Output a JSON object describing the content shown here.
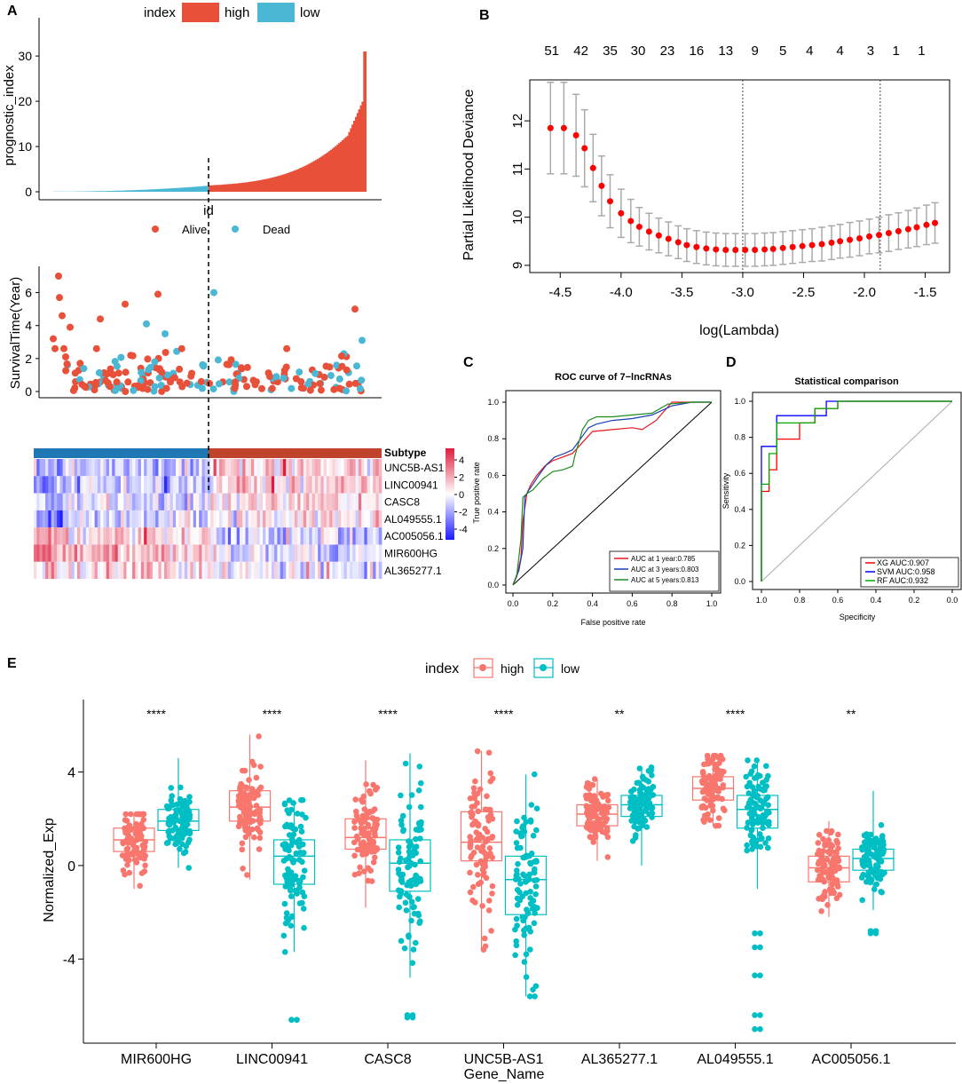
{
  "panel_labels": {
    "a": "A",
    "b": "B",
    "c": "C",
    "d": "D",
    "e": "E"
  },
  "colors": {
    "high": "#e8503a",
    "low": "#4ab8d4",
    "alive": "#e8503a",
    "dead": "#4ab8d4",
    "point": "#ff0000",
    "errbar": "#aaaaaa",
    "box_high": "#f8766d",
    "box_low": "#00bfc4",
    "heat_high": "#dd1c3c",
    "heat_mid": "#ffffff",
    "heat_low": "#1a1aff",
    "subtype_low": "#1f78b4",
    "subtype_high": "#c0432c"
  },
  "chart_data": [
    {
      "id": "A1",
      "type": "bar",
      "title": "",
      "ylabel": "prognostic_index",
      "xlabel": "id",
      "yticks": [
        "0",
        "10",
        "20",
        "30"
      ],
      "ylim": [
        0,
        31
      ],
      "legend": {
        "title": "index",
        "items": [
          "high",
          "low"
        ]
      },
      "n_low": 100,
      "n_high": 95,
      "max_value": 31
    },
    {
      "id": "A2",
      "type": "scatter",
      "ylabel": "SurvivalTime(Year)",
      "yticks": [
        "0",
        "2",
        "4",
        "6"
      ],
      "ylim": [
        0,
        7.3
      ],
      "legend": {
        "items": [
          "Alive",
          "Dead"
        ]
      },
      "note": "points ordered by prognostic index; low group left of cutoff"
    },
    {
      "id": "A3",
      "type": "heatmap",
      "annotation_label": "Subtype",
      "rows": [
        "UNC5B-AS1",
        "LINC00941",
        "CASC8",
        "AL049555.1",
        "AC005056.1",
        "MIR600HG",
        "AL365277.1"
      ],
      "scale_ticks": [
        "4",
        "2",
        "0",
        "-2",
        "-4"
      ]
    },
    {
      "id": "B",
      "type": "line",
      "xlabel": "log(Lambda)",
      "ylabel": "Partial Likelihood Deviance",
      "xticks": [
        "-4.5",
        "-4.0",
        "-3.5",
        "-3.0",
        "-2.5",
        "-2.0",
        "-1.5"
      ],
      "yticks": [
        "9",
        "10",
        "11",
        "12"
      ],
      "xlim": [
        -4.75,
        -1.3
      ],
      "ylim": [
        8.85,
        12.85
      ],
      "top_counts": [
        "51",
        "42",
        "35",
        "30",
        "23",
        "16",
        "13",
        "9",
        "5",
        "4",
        "4",
        "3",
        "1",
        "1"
      ],
      "top_count_x": [
        -4.57,
        -4.33,
        -4.09,
        -3.86,
        -3.62,
        -3.38,
        -3.14,
        -2.9,
        -2.67,
        -2.45,
        -2.2,
        -1.95,
        -1.74,
        -1.53
      ],
      "vlines": [
        -3.0,
        -1.87
      ],
      "x": [
        -4.58,
        -4.47,
        -4.37,
        -4.3,
        -4.23,
        -4.16,
        -4.09,
        -4.0,
        -3.92,
        -3.85,
        -3.77,
        -3.69,
        -3.61,
        -3.53,
        -3.46,
        -3.38,
        -3.3,
        -3.22,
        -3.14,
        -3.06,
        -2.98,
        -2.9,
        -2.82,
        -2.75,
        -2.67,
        -2.59,
        -2.51,
        -2.43,
        -2.35,
        -2.27,
        -2.2,
        -2.12,
        -2.04,
        -1.96,
        -1.88,
        -1.8,
        -1.72,
        -1.64,
        -1.57,
        -1.49,
        -1.42
      ],
      "mean": [
        11.85,
        11.85,
        11.7,
        11.43,
        11.02,
        10.65,
        10.33,
        10.08,
        9.92,
        9.8,
        9.7,
        9.62,
        9.55,
        9.48,
        9.42,
        9.38,
        9.35,
        9.33,
        9.32,
        9.32,
        9.32,
        9.32,
        9.33,
        9.34,
        9.36,
        9.38,
        9.4,
        9.42,
        9.44,
        9.47,
        9.5,
        9.53,
        9.56,
        9.6,
        9.63,
        9.67,
        9.71,
        9.75,
        9.79,
        9.84,
        9.88
      ],
      "err": [
        0.95,
        0.95,
        0.85,
        0.8,
        0.7,
        0.62,
        0.55,
        0.5,
        0.45,
        0.4,
        0.38,
        0.36,
        0.35,
        0.34,
        0.34,
        0.34,
        0.34,
        0.34,
        0.34,
        0.34,
        0.34,
        0.34,
        0.34,
        0.34,
        0.34,
        0.34,
        0.34,
        0.34,
        0.35,
        0.35,
        0.35,
        0.36,
        0.36,
        0.36,
        0.37,
        0.38,
        0.38,
        0.39,
        0.4,
        0.41,
        0.42
      ]
    },
    {
      "id": "C",
      "type": "line",
      "title": "ROC curve of 7−lncRNAs",
      "xlabel": "False positive rate",
      "ylabel": "True positive rate",
      "ticks": [
        "0.0",
        "0.2",
        "0.4",
        "0.6",
        "0.8",
        "1.0"
      ],
      "series": [
        {
          "name": "AUC at 1 year:0.785",
          "color": "#e8191e",
          "x": [
            0,
            0.02,
            0.04,
            0.05,
            0.07,
            0.09,
            0.12,
            0.16,
            0.2,
            0.25,
            0.3,
            0.35,
            0.4,
            0.5,
            0.6,
            0.65,
            0.72,
            0.8,
            0.9,
            1
          ],
          "y": [
            0,
            0.05,
            0.15,
            0.35,
            0.5,
            0.55,
            0.6,
            0.65,
            0.68,
            0.7,
            0.72,
            0.78,
            0.84,
            0.85,
            0.86,
            0.85,
            0.9,
            1,
            1,
            1
          ]
        },
        {
          "name": "AUC at 3 years:0.803",
          "color": "#1a3fb8",
          "x": [
            0,
            0.03,
            0.05,
            0.06,
            0.08,
            0.1,
            0.13,
            0.17,
            0.21,
            0.26,
            0.3,
            0.34,
            0.38,
            0.42,
            0.5,
            0.6,
            0.7,
            0.8,
            0.9,
            1
          ],
          "y": [
            0,
            0.08,
            0.2,
            0.48,
            0.52,
            0.55,
            0.6,
            0.66,
            0.7,
            0.72,
            0.74,
            0.8,
            0.86,
            0.88,
            0.9,
            0.91,
            0.93,
            0.98,
            1,
            1
          ]
        },
        {
          "name": "AUC at 5 years:0.813",
          "color": "#1f8a1f",
          "x": [
            0,
            0.02,
            0.04,
            0.05,
            0.07,
            0.1,
            0.15,
            0.2,
            0.25,
            0.3,
            0.31,
            0.35,
            0.38,
            0.42,
            0.5,
            0.6,
            0.7,
            0.78,
            0.9,
            1
          ],
          "y": [
            0,
            0.06,
            0.25,
            0.48,
            0.5,
            0.52,
            0.58,
            0.62,
            0.63,
            0.65,
            0.7,
            0.85,
            0.9,
            0.92,
            0.92,
            0.93,
            0.94,
            0.99,
            1,
            1
          ]
        }
      ]
    },
    {
      "id": "D",
      "type": "line",
      "title": "Statistical comparison",
      "xlabel": "Specificity",
      "ylabel": "Sensitivity",
      "xticks": [
        "1.0",
        "0.8",
        "0.6",
        "0.4",
        "0.2",
        "0.0"
      ],
      "yticks": [
        "0.0",
        "0.2",
        "0.4",
        "0.6",
        "0.8",
        "1.0"
      ],
      "series": [
        {
          "name": "XG AUC:0.907",
          "color": "#ff0000",
          "spec": [
            1,
            1,
            0.96,
            0.96,
            0.92,
            0.92,
            0.8,
            0.8,
            0.72,
            0.72,
            0.6,
            0.6,
            0
          ],
          "sens": [
            0,
            0.5,
            0.5,
            0.62,
            0.62,
            0.79,
            0.79,
            0.88,
            0.88,
            0.96,
            0.96,
            1,
            1
          ]
        },
        {
          "name": "SVM AUC:0.958",
          "color": "#0000ff",
          "spec": [
            1,
            1,
            0.92,
            0.92,
            0.66,
            0.66,
            0
          ],
          "sens": [
            0,
            0.75,
            0.75,
            0.92,
            0.92,
            1,
            1
          ]
        },
        {
          "name": "RF AUC:0.932",
          "color": "#00aa00",
          "spec": [
            1,
            1,
            0.96,
            0.96,
            0.92,
            0.92,
            0.72,
            0.72,
            0.6,
            0.6,
            0
          ],
          "sens": [
            0,
            0.54,
            0.54,
            0.71,
            0.71,
            0.88,
            0.88,
            0.96,
            0.96,
            1,
            1
          ]
        }
      ]
    },
    {
      "id": "E",
      "type": "box",
      "legend": {
        "title": "index",
        "items": [
          "high",
          "low"
        ]
      },
      "xlabel": "Gene_Name",
      "ylabel": "Normalized_Exp",
      "yticks": [
        "-4",
        "0",
        "4"
      ],
      "ylim": [
        -7.6,
        7.1
      ],
      "categories": [
        "MIR600HG",
        "LINC00941",
        "CASC8",
        "UNC5B-AS1",
        "AL365277.1",
        "AL049555.1",
        "AC005056.1"
      ],
      "significance": [
        "****",
        "****",
        "****",
        "****",
        "**",
        "****",
        "**"
      ],
      "high": [
        {
          "q1": 0.6,
          "med": 1.1,
          "q3": 1.6,
          "lo": -1.0,
          "hi": 2.2
        },
        {
          "q1": 1.9,
          "med": 2.5,
          "q3": 3.2,
          "lo": -0.6,
          "hi": 5.6
        },
        {
          "q1": 0.7,
          "med": 1.2,
          "q3": 2.0,
          "lo": -1.8,
          "hi": 4.5
        },
        {
          "q1": 0.2,
          "med": 1.0,
          "q3": 2.3,
          "lo": -3.6,
          "hi": 4.9
        },
        {
          "q1": 1.7,
          "med": 2.2,
          "q3": 2.6,
          "lo": 0.2,
          "hi": 3.7
        },
        {
          "q1": 2.8,
          "med": 3.3,
          "q3": 3.8,
          "lo": 1.7,
          "hi": 4.7
        },
        {
          "q1": -0.7,
          "med": -0.1,
          "q3": 0.4,
          "lo": -2.2,
          "hi": 1.9
        }
      ],
      "low": [
        {
          "q1": 1.5,
          "med": 1.9,
          "q3": 2.4,
          "lo": -0.1,
          "hi": 4.6
        },
        {
          "q1": -0.8,
          "med": 0.4,
          "q3": 1.1,
          "lo": -3.7,
          "hi": 2.8
        },
        {
          "q1": -1.1,
          "med": 0.1,
          "q3": 1.1,
          "lo": -4.8,
          "hi": 4.8
        },
        {
          "q1": -2.1,
          "med": -0.6,
          "q3": 0.4,
          "lo": -5.6,
          "hi": 3.9
        },
        {
          "q1": 2.1,
          "med": 2.6,
          "q3": 3.0,
          "lo": 0.0,
          "hi": 4.2
        },
        {
          "q1": 1.6,
          "med": 2.4,
          "q3": 3.0,
          "lo": -1.0,
          "hi": 4.5
        },
        {
          "q1": -0.2,
          "med": 0.3,
          "q3": 0.7,
          "lo": -1.9,
          "hi": 3.2
        }
      ],
      "outliers_low": [
        [],
        [
          -6.6,
          -6.6
        ],
        [
          -6.4,
          -6.5
        ],
        [],
        [],
        [
          -2.9,
          -3.5,
          -4.7,
          -6.4,
          -7.0
        ],
        [
          -2.8,
          -2.9
        ]
      ]
    }
  ]
}
